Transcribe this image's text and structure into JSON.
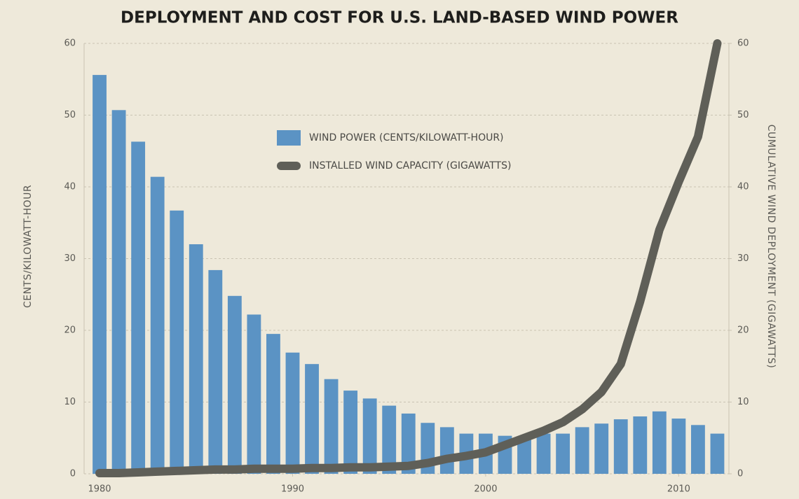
{
  "chart_data": {
    "type": "bar",
    "title": "DEPLOYMENT AND COST FOR U.S. LAND-BASED WIND POWER",
    "y_label": "CENTS/KILOWATT-HOUR",
    "y2_label": "CUMULATIVE WIND DEPLOYMENT (GIGAWATTS)",
    "x": [
      1980,
      1981,
      1982,
      1983,
      1984,
      1985,
      1986,
      1987,
      1988,
      1989,
      1990,
      1991,
      1992,
      1993,
      1994,
      1995,
      1996,
      1997,
      1998,
      1999,
      2000,
      2001,
      2002,
      2003,
      2004,
      2005,
      2006,
      2007,
      2008,
      2009,
      2010,
      2011,
      2012
    ],
    "xlim": [
      1979.2,
      2012.6
    ],
    "xticks": [
      1980,
      1990,
      2000,
      2010
    ],
    "ylim": [
      0,
      60
    ],
    "yticks": [
      0,
      10,
      20,
      30,
      40,
      50,
      60
    ],
    "y2lim": [
      0,
      60
    ],
    "y2ticks": [
      0,
      10,
      20,
      30,
      40,
      50,
      60
    ],
    "grid": true,
    "series": [
      {
        "name": "WIND POWER (CENTS/KILOWATT-HOUR)",
        "type": "bar",
        "color": "#5b93c4",
        "values": [
          55.6,
          50.7,
          46.3,
          41.4,
          36.7,
          32,
          28.4,
          24.8,
          22.2,
          19.5,
          16.9,
          15.3,
          13.2,
          11.6,
          10.5,
          9.5,
          8.4,
          7.1,
          6.5,
          5.6,
          5.6,
          5.3,
          5.0,
          5.6,
          5.6,
          6.5,
          7.0,
          7.6,
          8.0,
          8.7,
          7.7,
          6.8,
          5.6
        ]
      },
      {
        "name": "INSTALLED WIND CAPACITY (GIGAWATTS)",
        "type": "line",
        "axis": "y2",
        "color": "#5f5f58",
        "values": [
          0.1,
          0.1,
          0.2,
          0.3,
          0.4,
          0.5,
          0.6,
          0.6,
          0.7,
          0.7,
          0.7,
          0.8,
          0.8,
          0.9,
          0.9,
          1.0,
          1.1,
          1.5,
          2.1,
          2.5,
          3.0,
          4.0,
          5.0,
          6.0,
          7.2,
          9.0,
          11.4,
          15.3,
          24,
          34,
          40.7,
          47,
          60
        ]
      }
    ]
  }
}
